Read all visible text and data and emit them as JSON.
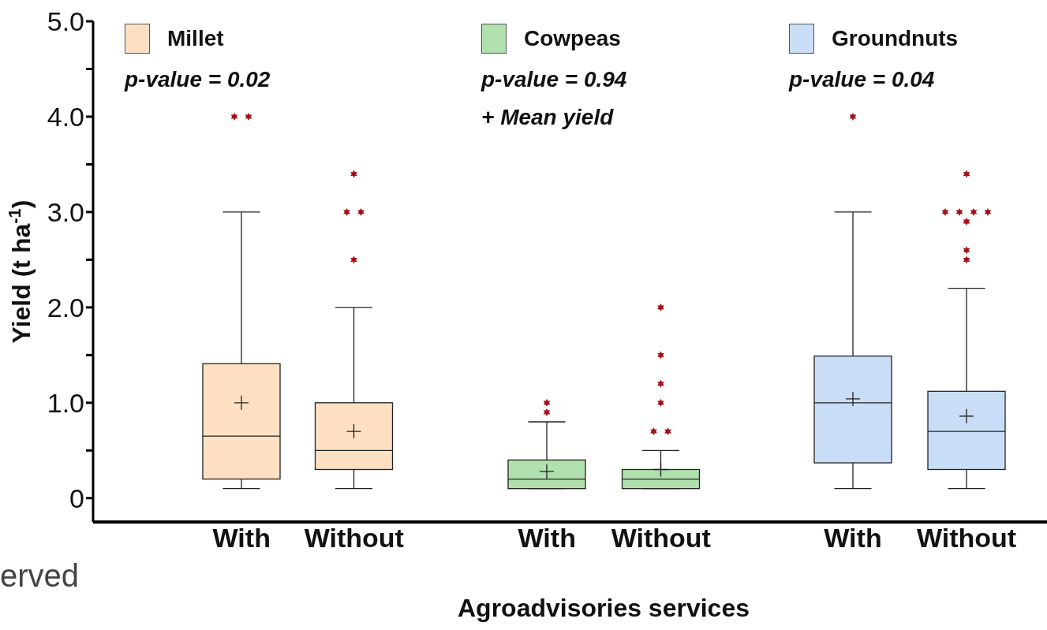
{
  "chart_data": [
    {
      "type": "box",
      "ylabel": "Yield (t ha$^{-1}$)",
      "categories": [
        "With",
        "Without"
      ],
      "ylim": [
        -0.25,
        5
      ],
      "yticks": [
        {
          "value": 0,
          "label": "0"
        },
        {
          "value": 0.5,
          "label": null
        },
        {
          "value": 1,
          "label": "1.0"
        },
        {
          "value": 1.5,
          "label": null
        },
        {
          "value": 2,
          "label": "2.0"
        },
        {
          "value": 2.5,
          "label": null
        },
        {
          "value": 3,
          "label": "3.0"
        },
        {
          "value": 3.5,
          "label": null
        },
        {
          "value": 4,
          "label": "4.0"
        },
        {
          "value": 4.5,
          "label": null
        },
        {
          "value": 5,
          "label": "5.0"
        }
      ],
      "legend": "top left",
      "marker": "star",
      "annotations": [
        "p-value = 0.02",
        "erved"
      ],
      "series": [
        {
          "name": "Millet",
          "color": "#fde0c2",
          "boxes": [
            {
              "low": 0.1,
              "q1": 0.2,
              "median": 0.65,
              "q3": 1.41,
              "high": 3.0,
              "mean": 1.0,
              "outliers": [
                4.0,
                4.0
              ]
            },
            {
              "low": 0.1,
              "q1": 0.3,
              "median": 0.5,
              "q3": 1.0,
              "high": 2.0,
              "mean": 0.7,
              "outliers": [
                3.4,
                3.0,
                3.0,
                2.5
              ]
            }
          ]
        }
      ]
    },
    {
      "type": "box",
      "xlabel": "Agroadvisories services",
      "categories": [
        "With",
        "Without"
      ],
      "ylim": [
        -0.25,
        5
      ],
      "tick_labels": "x",
      "legend": "top left",
      "marker": "star",
      "annotations": [
        "p-value = 0.94",
        "+ Mean yield"
      ],
      "series": [
        {
          "name": "Cowpeas",
          "color": "#b0e0ad",
          "boxes": [
            {
              "low": 0.1,
              "q1": 0.1,
              "median": 0.2,
              "q3": 0.4,
              "high": 0.8,
              "mean": 0.28,
              "outliers": [
                1.0,
                0.9
              ]
            },
            {
              "low": 0.1,
              "q1": 0.1,
              "median": 0.2,
              "q3": 0.3,
              "high": 0.5,
              "mean": 0.3,
              "outliers": [
                2.0,
                1.5,
                1.2,
                1.0,
                0.7,
                0.7
              ]
            }
          ]
        }
      ]
    },
    {
      "type": "box",
      "categories": [
        "With",
        "Without"
      ],
      "ylim": [
        -0.25,
        5
      ],
      "tick_labels": "x",
      "legend": "top left",
      "marker": "star",
      "annotations": [
        "p-value = 0.04"
      ],
      "series": [
        {
          "name": "Groundnuts",
          "color": "#c9ddf6",
          "boxes": [
            {
              "low": 0.1,
              "q1": 0.37,
              "median": 1.0,
              "q3": 1.49,
              "high": 3.0,
              "mean": 1.04,
              "outliers": [
                4.0
              ]
            },
            {
              "low": 0.1,
              "q1": 0.3,
              "median": 0.7,
              "q3": 1.12,
              "high": 2.2,
              "mean": 0.86,
              "outliers": [
                3.4,
                3.0,
                3.0,
                3.0,
                3.0,
                2.9,
                2.6,
                2.5
              ]
            }
          ]
        }
      ]
    }
  ]
}
